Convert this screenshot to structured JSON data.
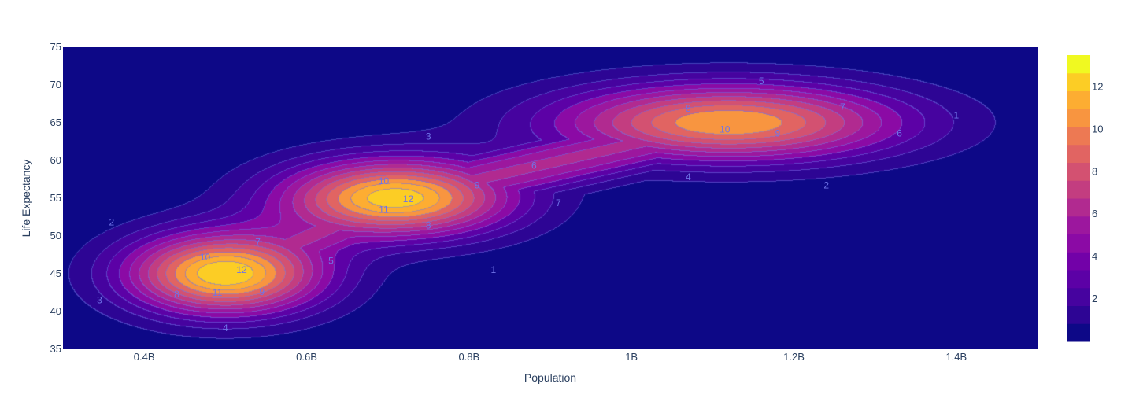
{
  "chart_data": {
    "type": "contour",
    "title": "",
    "xlabel": "Population",
    "ylabel": "Life Expectancy",
    "xlim": [
      300000000,
      1500000000
    ],
    "ylim": [
      35,
      75
    ],
    "x_ticks": [
      {
        "value": 400000000,
        "label": "0.4B"
      },
      {
        "value": 600000000,
        "label": "0.6B"
      },
      {
        "value": 800000000,
        "label": "0.8B"
      },
      {
        "value": 1000000000,
        "label": "1B"
      },
      {
        "value": 1200000000,
        "label": "1.2B"
      },
      {
        "value": 1400000000,
        "label": "1.4B"
      }
    ],
    "y_ticks": [
      35,
      40,
      45,
      50,
      55,
      60,
      65,
      70,
      75
    ],
    "peaks": [
      {
        "x": 500000000,
        "y": 45,
        "z": 13.0,
        "sx": 85000000,
        "sy": 3.8
      },
      {
        "x": 710000000,
        "y": 55,
        "z": 12.7,
        "sx": 100000000,
        "sy": 3.6
      },
      {
        "x": 1120000000,
        "y": 65,
        "z": 11.0,
        "sx": 150000000,
        "sy": 3.6
      }
    ],
    "ridges": [
      {
        "x0": 500000000,
        "y0": 45,
        "x1": 710000000,
        "y1": 55,
        "z": 6.2,
        "s": 0.055
      },
      {
        "x0": 710000000,
        "y0": 55,
        "x1": 1120000000,
        "y1": 65,
        "z": 6.2,
        "s": 0.055
      }
    ],
    "contour_levels": [
      1,
      2,
      3,
      4,
      5,
      6,
      7,
      8,
      9,
      10,
      11,
      12
    ],
    "contour_labels": [
      {
        "text": "1",
        "x": 1400000000,
        "y": 66
      },
      {
        "text": "1",
        "x": 830000000,
        "y": 45.5
      },
      {
        "text": "2",
        "x": 1240000000,
        "y": 56.7
      },
      {
        "text": "2",
        "x": 360000000,
        "y": 51.8
      },
      {
        "text": "3",
        "x": 750000000,
        "y": 63.2
      },
      {
        "text": "3",
        "x": 345000000,
        "y": 41.5
      },
      {
        "text": "4",
        "x": 1070000000,
        "y": 57.8
      },
      {
        "text": "4",
        "x": 500000000,
        "y": 37.8
      },
      {
        "text": "5",
        "x": 1160000000,
        "y": 70.5
      },
      {
        "text": "5",
        "x": 630000000,
        "y": 46.7
      },
      {
        "text": "6",
        "x": 880000000,
        "y": 59.3
      },
      {
        "text": "6",
        "x": 1330000000,
        "y": 63.6
      },
      {
        "text": "7",
        "x": 1260000000,
        "y": 67.1
      },
      {
        "text": "7",
        "x": 910000000,
        "y": 54.4
      },
      {
        "text": "7",
        "x": 540000000,
        "y": 49.2
      },
      {
        "text": "8",
        "x": 1070000000,
        "y": 66.9
      },
      {
        "text": "8",
        "x": 750000000,
        "y": 51.4
      },
      {
        "text": "8",
        "x": 440000000,
        "y": 42.3
      },
      {
        "text": "9",
        "x": 810000000,
        "y": 56.7
      },
      {
        "text": "9",
        "x": 1180000000,
        "y": 63.6
      },
      {
        "text": "9",
        "x": 545000000,
        "y": 42.6
      },
      {
        "text": "10",
        "x": 1115000000,
        "y": 64.1
      },
      {
        "text": "10",
        "x": 695000000,
        "y": 57.3
      },
      {
        "text": "10",
        "x": 475000000,
        "y": 47.2
      },
      {
        "text": "11",
        "x": 695000000,
        "y": 53.5
      },
      {
        "text": "11",
        "x": 490000000,
        "y": 42.5
      },
      {
        "text": "12",
        "x": 725000000,
        "y": 54.9
      },
      {
        "text": "12",
        "x": 520000000,
        "y": 45.5
      }
    ],
    "colorbar": {
      "min": 0,
      "max": 13.5,
      "ticks": [
        2,
        4,
        6,
        8,
        10,
        12
      ],
      "colors": [
        "#0d0887",
        "#2d0594",
        "#46039f",
        "#5c01a6",
        "#7201a8",
        "#8b0aa5",
        "#9c179e",
        "#b12a90",
        "#c33d80",
        "#d35171",
        "#e16462",
        "#ed7953",
        "#f89540",
        "#fdad32",
        "#fccd25",
        "#f0f921"
      ]
    }
  }
}
